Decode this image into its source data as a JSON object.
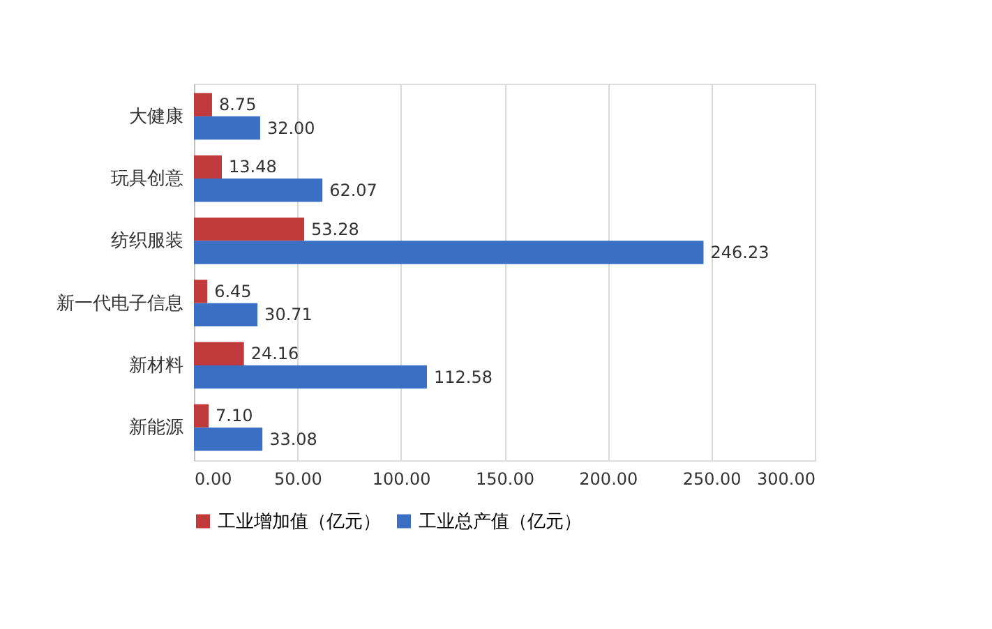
{
  "chart_data": {
    "type": "bar",
    "orientation": "horizontal",
    "categories": [
      "大健康",
      "玩具创意",
      "纺织服装",
      "新一代电子信息",
      "新材料",
      "新能源"
    ],
    "series": [
      {
        "name": "工业增加值（亿元）",
        "color": "#c0393b",
        "values": [
          8.75,
          13.48,
          53.28,
          6.45,
          24.16,
          7.1
        ],
        "value_labels": [
          "8.75",
          "13.48",
          "53.28",
          "6.45",
          "24.16",
          "7.10"
        ]
      },
      {
        "name": "工业总产值（亿元）",
        "color": "#3a6fc4",
        "values": [
          32,
          62.07,
          246.23,
          30.71,
          112.58,
          33.08
        ],
        "value_labels": [
          "32.00",
          "62.07",
          "246.23",
          "30.71",
          "112.58",
          "33.08"
        ]
      }
    ],
    "xlim": [
      0,
      300
    ],
    "xticks": [
      {
        "value": 0,
        "label": "0.00"
      },
      {
        "value": 50,
        "label": "50.00"
      },
      {
        "value": 100,
        "label": "100.00"
      },
      {
        "value": 150,
        "label": "150.00"
      },
      {
        "value": 200,
        "label": "200.00"
      },
      {
        "value": 250,
        "label": "250.00"
      },
      {
        "value": 300,
        "label": "300.00"
      }
    ],
    "grid": "x",
    "legend": "bottom"
  }
}
